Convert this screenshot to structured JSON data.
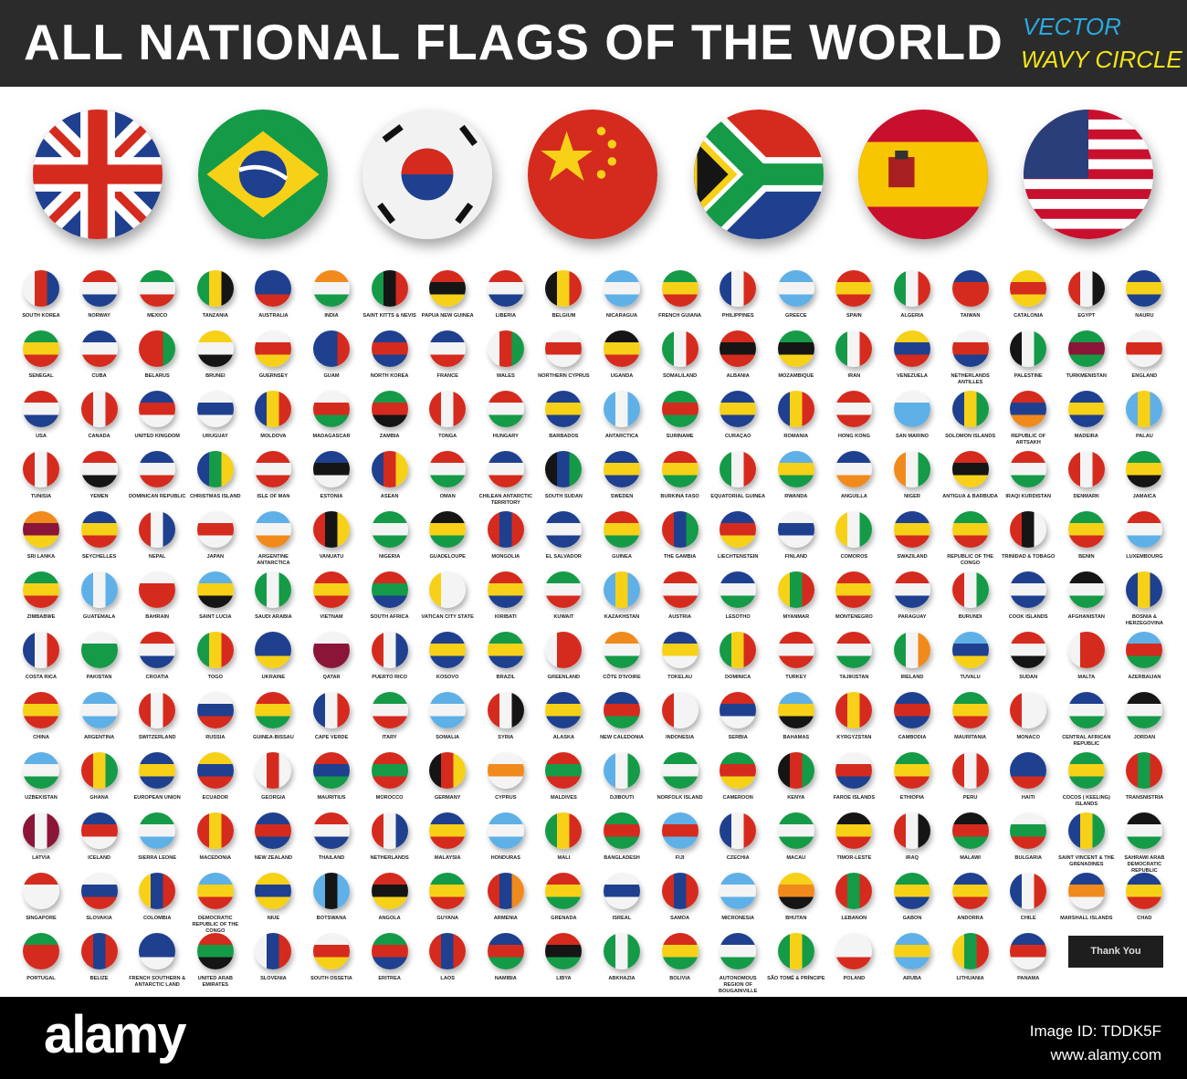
{
  "header": {
    "title": "ALL NATIONAL FLAGS OF THE WORLD",
    "tag1": "VECTOR",
    "tag2": "WAVY CIRCLE",
    "colors": {
      "bar": "#2b2b2b",
      "tag1": "#2aa9e0",
      "tag2": "#f2e21a"
    }
  },
  "featured": [
    "united-kingdom",
    "brazil",
    "south-korea",
    "china",
    "south-africa",
    "spain",
    "usa"
  ],
  "palette": {
    "r": "#d52b1e",
    "w": "#f4f4f4",
    "b": "#1f3f8f",
    "g": "#159a48",
    "y": "#f7d117",
    "k": "#151515",
    "o": "#f18a1c",
    "l": "#5fb0e6",
    "m": "#8a1538"
  },
  "rows": [
    [
      {
        "n": "SOUTH KOREA",
        "c": "wrb"
      },
      {
        "n": "NORWAY",
        "c": "rwb"
      },
      {
        "n": "MEXICO",
        "c": "gwr"
      },
      {
        "n": "TANZANIA",
        "c": "gyk"
      },
      {
        "n": "AUSTRALIA",
        "c": "bbr"
      },
      {
        "n": "INDIA",
        "c": "owg"
      },
      {
        "n": "SAINT KITTS & NEVIS",
        "c": "gkr"
      },
      {
        "n": "PAPUA NEW GUINEA",
        "c": "rky"
      },
      {
        "n": "LIBERIA",
        "c": "rwb"
      },
      {
        "n": "BELGIUM",
        "c": "kyr"
      },
      {
        "n": "NICARAGUA",
        "c": "lwl"
      },
      {
        "n": "FRENCH GUIANA",
        "c": "gyr"
      },
      {
        "n": "PHILIPPINES",
        "c": "bwr"
      },
      {
        "n": "GREECE",
        "c": "lwl"
      },
      {
        "n": "SPAIN",
        "c": "ryr"
      },
      {
        "n": "ALGERIA",
        "c": "gwr"
      },
      {
        "n": "TAIWAN",
        "c": "brr"
      },
      {
        "n": "CATALONIA",
        "c": "yry"
      },
      {
        "n": "EGYPT",
        "c": "rwk"
      },
      {
        "n": "NAURU",
        "c": "byb"
      }
    ],
    [
      {
        "n": "SENEGAL",
        "c": "gyr"
      },
      {
        "n": "CUBA",
        "c": "bwr"
      },
      {
        "n": "BELARUS",
        "c": "rrg"
      },
      {
        "n": "BRUNEI",
        "c": "ywk"
      },
      {
        "n": "GUERNSEY",
        "c": "wry"
      },
      {
        "n": "GUAM",
        "c": "bbr"
      },
      {
        "n": "NORTH KOREA",
        "c": "brb"
      },
      {
        "n": "FRANCE",
        "c": "bwr"
      },
      {
        "n": "WALES",
        "c": "wrg"
      },
      {
        "n": "NORTHERN CYPRUS",
        "c": "wrw"
      },
      {
        "n": "UGANDA",
        "c": "kyr"
      },
      {
        "n": "SOMALILAND",
        "c": "gwr"
      },
      {
        "n": "ALBANIA",
        "c": "rkr"
      },
      {
        "n": "MOZAMBIQUE",
        "c": "gky"
      },
      {
        "n": "IRAN",
        "c": "gwr"
      },
      {
        "n": "VENEZUELA",
        "c": "ybr"
      },
      {
        "n": "NETHERLANDS ANTILLES",
        "c": "wrb"
      },
      {
        "n": "PALESTINE",
        "c": "kwg"
      },
      {
        "n": "TURKMENISTAN",
        "c": "gmg"
      },
      {
        "n": "ENGLAND",
        "c": "wrw"
      }
    ],
    [
      {
        "n": "USA",
        "c": "rwb"
      },
      {
        "n": "CANADA",
        "c": "rwr"
      },
      {
        "n": "UNITED KINGDOM",
        "c": "brw"
      },
      {
        "n": "URUGUAY",
        "c": "wbw"
      },
      {
        "n": "MOLDOVA",
        "c": "byr"
      },
      {
        "n": "MADAGASCAR",
        "c": "wrg"
      },
      {
        "n": "ZAMBIA",
        "c": "grk"
      },
      {
        "n": "TONGA",
        "c": "rwr"
      },
      {
        "n": "HUNGARY",
        "c": "rwg"
      },
      {
        "n": "BARBADOS",
        "c": "byb"
      },
      {
        "n": "ANTARCTICA",
        "c": "lwl"
      },
      {
        "n": "SURINAME",
        "c": "grg"
      },
      {
        "n": "CURAÇAO",
        "c": "byb"
      },
      {
        "n": "ROMANIA",
        "c": "byr"
      },
      {
        "n": "HONG KONG",
        "c": "rwr"
      },
      {
        "n": "SAN MARINO",
        "c": "wll"
      },
      {
        "n": "SOLOMON ISLANDS",
        "c": "byg"
      },
      {
        "n": "REPUBLIC OF ARTSAKH",
        "c": "rbo"
      },
      {
        "n": "MADEIRA",
        "c": "byb"
      },
      {
        "n": "PALAU",
        "c": "lyl"
      }
    ],
    [
      {
        "n": "TUNISIA",
        "c": "rwr"
      },
      {
        "n": "YEMEN",
        "c": "rwk"
      },
      {
        "n": "DOMINICAN REPUBLIC",
        "c": "bwr"
      },
      {
        "n": "CHRISTMAS ISLAND",
        "c": "bgy"
      },
      {
        "n": "ISLE OF MAN",
        "c": "rwr"
      },
      {
        "n": "ESTONIA",
        "c": "bkw"
      },
      {
        "n": "ASEAN",
        "c": "bry"
      },
      {
        "n": "OMAN",
        "c": "rwg"
      },
      {
        "n": "CHILEAN ANTARCTIC TERRITORY",
        "c": "bwr"
      },
      {
        "n": "SOUTH SUDAN",
        "c": "kbg"
      },
      {
        "n": "SWEDEN",
        "c": "byb"
      },
      {
        "n": "BURKINA FASO",
        "c": "ryg"
      },
      {
        "n": "EQUATORIAL GUINEA",
        "c": "gwr"
      },
      {
        "n": "RWANDA",
        "c": "lyg"
      },
      {
        "n": "ANGUILLA",
        "c": "bwo"
      },
      {
        "n": "NIGER",
        "c": "owg"
      },
      {
        "n": "ANTIGUA & BARBUDA",
        "c": "rky"
      },
      {
        "n": "IRAQI KURDISTAN",
        "c": "rwg"
      },
      {
        "n": "DENMARK",
        "c": "rwr"
      },
      {
        "n": "JAMAICA",
        "c": "gyk"
      }
    ],
    [
      {
        "n": "SRI LANKA",
        "c": "omy"
      },
      {
        "n": "SEYCHELLES",
        "c": "byr"
      },
      {
        "n": "NEPAL",
        "c": "rwb"
      },
      {
        "n": "JAPAN",
        "c": "wrw"
      },
      {
        "n": "ARGENTINE ANTARCTICA",
        "c": "lwo"
      },
      {
        "n": "VANUATU",
        "c": "rky"
      },
      {
        "n": "NIGERIA",
        "c": "gwg"
      },
      {
        "n": "GUADELOUPE",
        "c": "kyg"
      },
      {
        "n": "MONGOLIA",
        "c": "rbr"
      },
      {
        "n": "EL SALVADOR",
        "c": "bwb"
      },
      {
        "n": "GUINEA",
        "c": "ryg"
      },
      {
        "n": "THE GAMBIA",
        "c": "rbg"
      },
      {
        "n": "LIECHTENSTEIN",
        "c": "bry"
      },
      {
        "n": "FINLAND",
        "c": "wbw"
      },
      {
        "n": "COMOROS",
        "c": "ywg"
      },
      {
        "n": "SWAZILAND",
        "c": "byr"
      },
      {
        "n": "REPUBLIC OF THE CONGO",
        "c": "gyr"
      },
      {
        "n": "TRINIDAD & TOBAGO",
        "c": "rkw"
      },
      {
        "n": "BENIN",
        "c": "gyr"
      },
      {
        "n": "LUXEMBOURG",
        "c": "rwl"
      }
    ],
    [
      {
        "n": "ZIMBABWE",
        "c": "gyr"
      },
      {
        "n": "GUATEMALA",
        "c": "lwl"
      },
      {
        "n": "BAHRAIN",
        "c": "wrr"
      },
      {
        "n": "SAINT LUCIA",
        "c": "lyk"
      },
      {
        "n": "SAUDI ARABIA",
        "c": "gwg"
      },
      {
        "n": "VIETNAM",
        "c": "ryr"
      },
      {
        "n": "SOUTH AFRICA",
        "c": "rgb"
      },
      {
        "n": "VATICAN CITY STATE",
        "c": "yww"
      },
      {
        "n": "KIRIBATI",
        "c": "ryb"
      },
      {
        "n": "KUWAIT",
        "c": "gwr"
      },
      {
        "n": "KAZAKHSTAN",
        "c": "lyl"
      },
      {
        "n": "AUSTRIA",
        "c": "rwr"
      },
      {
        "n": "LESOTHO",
        "c": "bwg"
      },
      {
        "n": "MYANMAR",
        "c": "ygr"
      },
      {
        "n": "MONTENEGRO",
        "c": "ryr"
      },
      {
        "n": "PARAGUAY",
        "c": "rwb"
      },
      {
        "n": "BURUNDI",
        "c": "rwg"
      },
      {
        "n": "COOK ISLANDS",
        "c": "bwb"
      },
      {
        "n": "AFGHANISTAN",
        "c": "kwg"
      },
      {
        "n": "BOSNIA & HERZEGOVINA",
        "c": "byb"
      }
    ],
    [
      {
        "n": "COSTA RICA",
        "c": "bwr"
      },
      {
        "n": "PAKISTAN",
        "c": "wgg"
      },
      {
        "n": "CROATIA",
        "c": "rwb"
      },
      {
        "n": "TOGO",
        "c": "gyr"
      },
      {
        "n": "UKRAINE",
        "c": "bby"
      },
      {
        "n": "QATAR",
        "c": "wmm"
      },
      {
        "n": "PUERTO RICO",
        "c": "rwb"
      },
      {
        "n": "KOSOVO",
        "c": "byb"
      },
      {
        "n": "BRAZIL",
        "c": "gyb"
      },
      {
        "n": "GREENLAND",
        "c": "wrr"
      },
      {
        "n": "CÔTE D'IVOIRE",
        "c": "owg"
      },
      {
        "n": "TOKELAU",
        "c": "byw"
      },
      {
        "n": "DOMINICA",
        "c": "gyr"
      },
      {
        "n": "TURKEY",
        "c": "rwr"
      },
      {
        "n": "TAJIKISTAN",
        "c": "rwg"
      },
      {
        "n": "IRELAND",
        "c": "gwo"
      },
      {
        "n": "TUVALU",
        "c": "lby"
      },
      {
        "n": "SUDAN",
        "c": "rwk"
      },
      {
        "n": "MALTA",
        "c": "wrr"
      },
      {
        "n": "AZERBAIJAN",
        "c": "lrg"
      }
    ],
    [
      {
        "n": "CHINA",
        "c": "ryr"
      },
      {
        "n": "ARGENTINA",
        "c": "lwl"
      },
      {
        "n": "SWITZERLAND",
        "c": "rwr"
      },
      {
        "n": "RUSSIA",
        "c": "wbr"
      },
      {
        "n": "GUINEA-BISSAU",
        "c": "ryg"
      },
      {
        "n": "CAPE VERDE",
        "c": "bwr"
      },
      {
        "n": "ITARY",
        "c": "gwr"
      },
      {
        "n": "SOMALIA",
        "c": "lwl"
      },
      {
        "n": "SYRIA",
        "c": "rwk"
      },
      {
        "n": "ALASKA",
        "c": "byb"
      },
      {
        "n": "NEW CALEDONIA",
        "c": "brg"
      },
      {
        "n": "INDONESIA",
        "c": "rww"
      },
      {
        "n": "SERBIA",
        "c": "rbw"
      },
      {
        "n": "BAHAMAS",
        "c": "lyk"
      },
      {
        "n": "KYRGYZSTAN",
        "c": "ryr"
      },
      {
        "n": "CAMBODIA",
        "c": "brb"
      },
      {
        "n": "MAURITANIA",
        "c": "gyr"
      },
      {
        "n": "MONACO",
        "c": "rww"
      },
      {
        "n": "CENTRAL AFRICAN REPUBLIC",
        "c": "bwg"
      },
      {
        "n": "JORDAN",
        "c": "kwg"
      }
    ],
    [
      {
        "n": "UZBEKISTAN",
        "c": "lwg"
      },
      {
        "n": "GHANA",
        "c": "ryg"
      },
      {
        "n": "EUROPEAN UNION",
        "c": "byb"
      },
      {
        "n": "ECUADOR",
        "c": "ybr"
      },
      {
        "n": "GEORGIA",
        "c": "wrw"
      },
      {
        "n": "MAURITIUS",
        "c": "rbg"
      },
      {
        "n": "MOROCCO",
        "c": "rgr"
      },
      {
        "n": "GERMANY",
        "c": "kry"
      },
      {
        "n": "CYPRUS",
        "c": "wow"
      },
      {
        "n": "MALDIVES",
        "c": "rgr"
      },
      {
        "n": "DJIBOUTI",
        "c": "lwg"
      },
      {
        "n": "NORFOLK ISLAND",
        "c": "gwg"
      },
      {
        "n": "CAMEROON",
        "c": "gry"
      },
      {
        "n": "KENYA",
        "c": "krg"
      },
      {
        "n": "FAROE ISLANDS",
        "c": "wrb"
      },
      {
        "n": "ETHIOPIA",
        "c": "gyr"
      },
      {
        "n": "PERU",
        "c": "rwr"
      },
      {
        "n": "HAITI",
        "c": "bbr"
      },
      {
        "n": "COCOS ( KEELING) ISLANDS",
        "c": "gyg"
      },
      {
        "n": "TRANSNISTRIA",
        "c": "rgr"
      }
    ],
    [
      {
        "n": "LATVIA",
        "c": "mwm"
      },
      {
        "n": "ICELAND",
        "c": "brw"
      },
      {
        "n": "SIERRA LEONE",
        "c": "gwl"
      },
      {
        "n": "MACEDONIA",
        "c": "ryr"
      },
      {
        "n": "NEW ZEALAND",
        "c": "brb"
      },
      {
        "n": "THAILAND",
        "c": "rwb"
      },
      {
        "n": "NETHERLANDS",
        "c": "rwb"
      },
      {
        "n": "MALAYSIA",
        "c": "byr"
      },
      {
        "n": "HONDURAS",
        "c": "lwl"
      },
      {
        "n": "MALI",
        "c": "gyr"
      },
      {
        "n": "BANGLADESH",
        "c": "grg"
      },
      {
        "n": "FIJI",
        "c": "lrl"
      },
      {
        "n": "CZECHIA",
        "c": "bwr"
      },
      {
        "n": "MACAU",
        "c": "gwg"
      },
      {
        "n": "TIMOR-LESTE",
        "c": "kyr"
      },
      {
        "n": "IRAQ",
        "c": "rwk"
      },
      {
        "n": "MALAWI",
        "c": "krg"
      },
      {
        "n": "BULGARIA",
        "c": "wgr"
      },
      {
        "n": "SAINT VINCENT & THE GRENADINES",
        "c": "byg"
      },
      {
        "n": "SAHRAWI ARAB DEMOCRATIC REPUBLIC",
        "c": "kwg"
      }
    ],
    [
      {
        "n": "SINGAPORE",
        "c": "rww"
      },
      {
        "n": "SLOVAKIA",
        "c": "wbr"
      },
      {
        "n": "COLOMBIA",
        "c": "ybr"
      },
      {
        "n": "DEMOCRATIC REPUBLIC OF THE CONGO",
        "c": "lyr"
      },
      {
        "n": "NIUE",
        "c": "yby"
      },
      {
        "n": "BOTSWANA",
        "c": "lkl"
      },
      {
        "n": "ANGOLA",
        "c": "rky"
      },
      {
        "n": "GUYANA",
        "c": "gyr"
      },
      {
        "n": "ARMENIA",
        "c": "rbo"
      },
      {
        "n": "GRENADA",
        "c": "ryg"
      },
      {
        "n": "ISREAL",
        "c": "wbw"
      },
      {
        "n": "SAMOA",
        "c": "rbr"
      },
      {
        "n": "MICRONESIA",
        "c": "lwl"
      },
      {
        "n": "BHUTAN",
        "c": "yok"
      },
      {
        "n": "LEBANON",
        "c": "rgr"
      },
      {
        "n": "GABON",
        "c": "gyb"
      },
      {
        "n": "ANDORRA",
        "c": "byr"
      },
      {
        "n": "CHILE",
        "c": "bwr"
      },
      {
        "n": "MARSHALL ISLANDS",
        "c": "bow"
      },
      {
        "n": "CHAD",
        "c": "byr"
      }
    ],
    [
      {
        "n": "PORTUGAL",
        "c": "grr"
      },
      {
        "n": "BELIZE",
        "c": "rbr"
      },
      {
        "n": "FRENCH SOUTHERN & ANTARCTIC LAND",
        "c": "bbw"
      },
      {
        "n": "UNITED ARAB EMIRATES",
        "c": "rgk"
      },
      {
        "n": "SLOVENIA",
        "c": "wbr"
      },
      {
        "n": "SOUTH OSSETIA",
        "c": "wry"
      },
      {
        "n": "ERITREA",
        "c": "grb"
      },
      {
        "n": "LAOS",
        "c": "rbr"
      },
      {
        "n": "NAMIBIA",
        "c": "brg"
      },
      {
        "n": "LIBYA",
        "c": "rkg"
      },
      {
        "n": "ABKHAZIA",
        "c": "gwg"
      },
      {
        "n": "BOLIVIA",
        "c": "ryg"
      },
      {
        "n": "AUTONOMOUS REGION OF BOUGAINVILLE",
        "c": "bwg"
      },
      {
        "n": "SÃO TOMÉ & PRÍNCIPE",
        "c": "gyg"
      },
      {
        "n": "POLAND",
        "c": "wwr"
      },
      {
        "n": "ARUBA",
        "c": "lyl"
      },
      {
        "n": "LITHUANIA",
        "c": "ygr"
      },
      {
        "n": "PANAMA",
        "c": "brw"
      }
    ]
  ],
  "thank_you": "Thank You",
  "footer": {
    "logo": "alamy",
    "image_id": "Image ID: TDDK5F",
    "url": "www.alamy.com"
  }
}
